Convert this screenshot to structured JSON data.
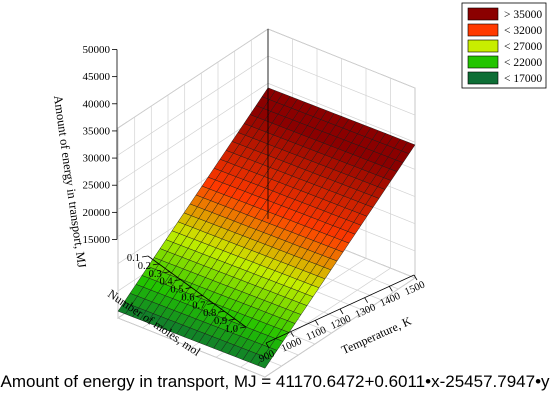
{
  "chart_data": {
    "type": "surface3d",
    "equation": "Amount of energy in transport, MJ = 41170.6472+0.6011•x-25457.7947•y",
    "coefficients": {
      "intercept": 41170.6472,
      "x": 0.6011,
      "y": -25457.7947
    },
    "x_axis": {
      "label": "Temperature, K",
      "range": [
        900,
        1500
      ],
      "ticks": [
        "900",
        "1000",
        "1100",
        "1200",
        "1300",
        "1400",
        "1500"
      ]
    },
    "y_axis": {
      "label": "Number of moles, mol",
      "range": [
        0.1,
        1.0
      ],
      "ticks": [
        "0.1",
        "0.2",
        "0.3",
        "0.4",
        "0.5",
        "0.6",
        "0.7",
        "0.8",
        "0.9",
        "1.0"
      ]
    },
    "z_axis": {
      "label": "Amount of energy in transport, MJ",
      "range": [
        15000,
        50000
      ],
      "ticks": [
        "15000",
        "20000",
        "25000",
        "30000",
        "35000",
        "40000",
        "45000",
        "50000"
      ]
    },
    "grid": true,
    "legend": {
      "placement": "top-right",
      "entries": [
        {
          "label": "> 35000",
          "color": "#8b0000"
        },
        {
          "label": "< 32000",
          "color": "#ff3a00"
        },
        {
          "label": "< 27000",
          "color": "#c8ee00"
        },
        {
          "label": "< 22000",
          "color": "#22c400"
        },
        {
          "label": "< 17000",
          "color": "#0d6e35"
        }
      ]
    },
    "colormap": [
      {
        "value": 16000,
        "color": "#0d6e35"
      },
      {
        "value": 19500,
        "color": "#22c400"
      },
      {
        "value": 24500,
        "color": "#c8ee00"
      },
      {
        "value": 29500,
        "color": "#ff3a00"
      },
      {
        "value": 37000,
        "color": "#8b0000"
      }
    ],
    "mesh": {
      "x_steps": 20,
      "y_steps": 25
    }
  }
}
